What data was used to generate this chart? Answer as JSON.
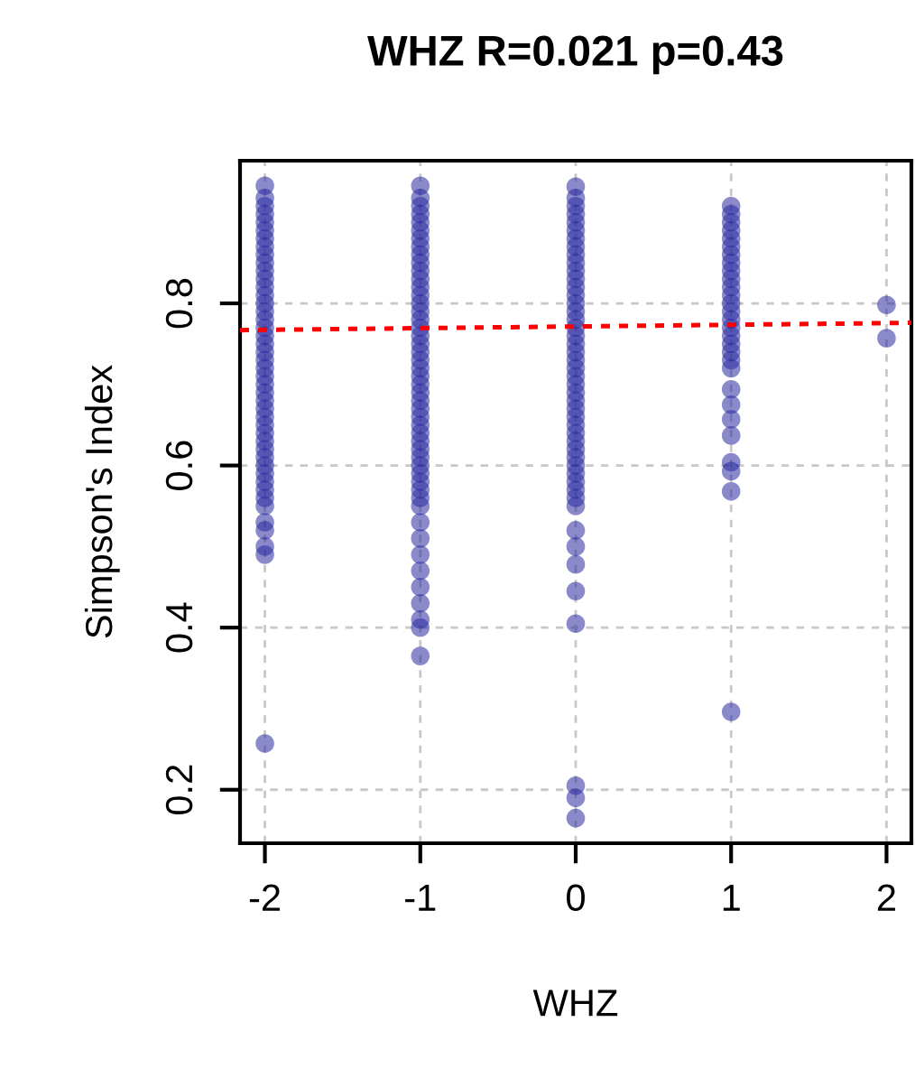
{
  "chart_data": {
    "type": "scatter",
    "title": "WHZ R=0.021 p=0.43",
    "xlabel": "WHZ",
    "ylabel": "Simpson's Index",
    "xlim": [
      -2.16,
      2.16
    ],
    "ylim": [
      0.134,
      0.976
    ],
    "xticks": [
      -2,
      -1,
      0,
      1,
      2
    ],
    "yticks": [
      0.2,
      0.4,
      0.6,
      0.8
    ],
    "grid": true,
    "marker": "circle",
    "series": [
      {
        "color": "#2a2aa0",
        "x": [
          -2,
          -2,
          -2,
          -2,
          -2,
          -2,
          -2,
          -2,
          -2,
          -2,
          -2,
          -2,
          -2,
          -2,
          -2,
          -2,
          -2,
          -2,
          -2,
          -2,
          -2,
          -2,
          -2,
          -2,
          -2,
          -2,
          -2,
          -2,
          -2,
          -2,
          -2,
          -2,
          -2,
          -2,
          -2,
          -2,
          -2,
          -2,
          -2,
          -2,
          -2,
          -2,
          -2,
          -2,
          -2,
          -1,
          -1,
          -1,
          -1,
          -1,
          -1,
          -1,
          -1,
          -1,
          -1,
          -1,
          -1,
          -1,
          -1,
          -1,
          -1,
          -1,
          -1,
          -1,
          -1,
          -1,
          -1,
          -1,
          -1,
          -1,
          -1,
          -1,
          -1,
          -1,
          -1,
          -1,
          -1,
          -1,
          -1,
          -1,
          -1,
          -1,
          -1,
          -1,
          -1,
          -1,
          -1,
          -1,
          -1,
          -1,
          -1,
          -1,
          -1,
          -1,
          0,
          0,
          0,
          0,
          0,
          0,
          0,
          0,
          0,
          0,
          0,
          0,
          0,
          0,
          0,
          0,
          0,
          0,
          0,
          0,
          0,
          0,
          0,
          0,
          0,
          0,
          0,
          0,
          0,
          0,
          0,
          0,
          0,
          0,
          0,
          0,
          0,
          0,
          0,
          0,
          0,
          0,
          0,
          0,
          0,
          0,
          0,
          0,
          1,
          1,
          1,
          1,
          1,
          1,
          1,
          1,
          1,
          1,
          1,
          1,
          1,
          1,
          1,
          1,
          1,
          1,
          1,
          1,
          1,
          1,
          1,
          1,
          1,
          1,
          1,
          1,
          1,
          2,
          2
        ],
        "values": [
          0.945,
          0.93,
          0.92,
          0.91,
          0.9,
          0.89,
          0.88,
          0.87,
          0.86,
          0.85,
          0.84,
          0.83,
          0.82,
          0.81,
          0.8,
          0.79,
          0.78,
          0.77,
          0.76,
          0.75,
          0.74,
          0.73,
          0.72,
          0.71,
          0.7,
          0.69,
          0.68,
          0.67,
          0.66,
          0.65,
          0.64,
          0.63,
          0.62,
          0.61,
          0.6,
          0.59,
          0.58,
          0.57,
          0.56,
          0.55,
          0.53,
          0.52,
          0.5,
          0.49,
          0.257,
          0.945,
          0.93,
          0.92,
          0.91,
          0.9,
          0.89,
          0.88,
          0.87,
          0.86,
          0.85,
          0.84,
          0.83,
          0.82,
          0.81,
          0.8,
          0.79,
          0.78,
          0.77,
          0.76,
          0.75,
          0.74,
          0.73,
          0.72,
          0.71,
          0.7,
          0.69,
          0.68,
          0.67,
          0.66,
          0.65,
          0.64,
          0.63,
          0.62,
          0.61,
          0.6,
          0.59,
          0.58,
          0.57,
          0.56,
          0.55,
          0.53,
          0.51,
          0.49,
          0.47,
          0.45,
          0.43,
          0.41,
          0.4,
          0.365,
          0.944,
          0.93,
          0.92,
          0.91,
          0.9,
          0.89,
          0.88,
          0.87,
          0.86,
          0.85,
          0.84,
          0.83,
          0.82,
          0.81,
          0.8,
          0.79,
          0.78,
          0.77,
          0.76,
          0.75,
          0.74,
          0.73,
          0.72,
          0.71,
          0.7,
          0.69,
          0.68,
          0.67,
          0.66,
          0.65,
          0.64,
          0.63,
          0.62,
          0.61,
          0.6,
          0.59,
          0.58,
          0.57,
          0.56,
          0.55,
          0.52,
          0.5,
          0.478,
          0.445,
          0.405,
          0.205,
          0.19,
          0.165,
          0.92,
          0.91,
          0.9,
          0.89,
          0.88,
          0.87,
          0.86,
          0.85,
          0.84,
          0.83,
          0.82,
          0.81,
          0.8,
          0.79,
          0.78,
          0.77,
          0.76,
          0.75,
          0.74,
          0.73,
          0.72,
          0.694,
          0.675,
          0.657,
          0.637,
          0.604,
          0.593,
          0.568,
          0.296,
          0.798,
          0.757
        ]
      },
      {
        "type": "line",
        "color": "#ff0000",
        "line_style": "dashed",
        "marker": "none",
        "x": [
          -2.16,
          2.16
        ],
        "values": [
          0.767,
          0.776
        ]
      }
    ]
  }
}
